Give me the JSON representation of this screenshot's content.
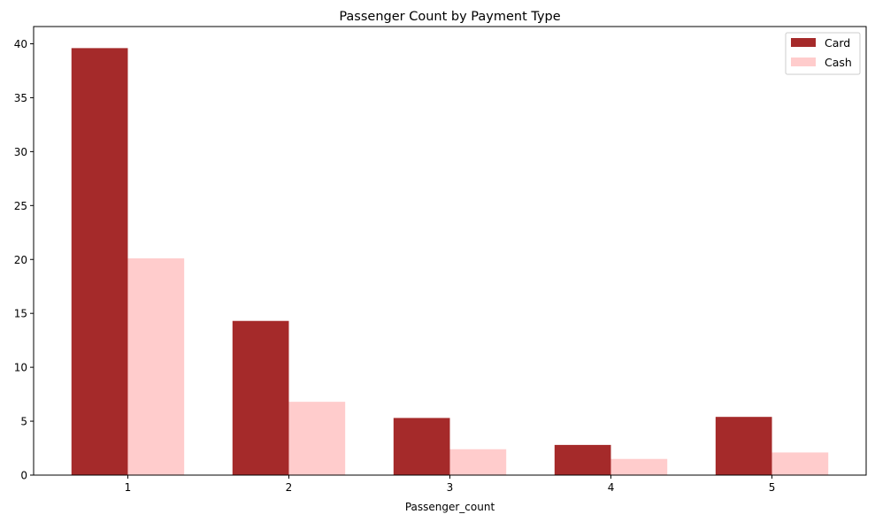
{
  "chart_data": {
    "type": "bar",
    "title": "Passenger Count by Payment Type",
    "xlabel": "Passenger_count",
    "ylabel": "",
    "categories": [
      "1",
      "2",
      "3",
      "4",
      "5"
    ],
    "series": [
      {
        "name": "Card",
        "color": "#a52a2a",
        "values": [
          39.6,
          14.3,
          5.3,
          2.8,
          5.4
        ]
      },
      {
        "name": "Cash",
        "color": "#ffcccc",
        "values": [
          20.1,
          6.8,
          2.4,
          1.5,
          2.1
        ]
      }
    ],
    "ylim": [
      0,
      41.6
    ],
    "yticks": [
      0,
      5,
      10,
      15,
      20,
      25,
      30,
      35,
      40
    ],
    "grid": false,
    "legend_position": "top-right"
  }
}
